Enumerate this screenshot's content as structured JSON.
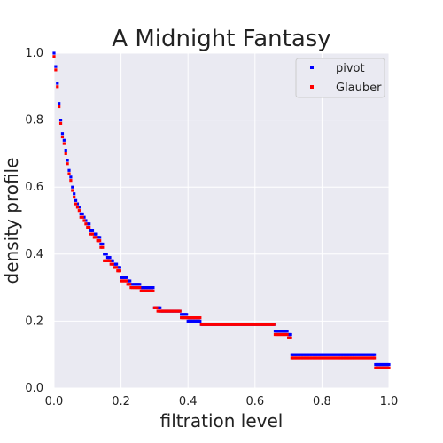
{
  "chart_data": {
    "type": "scatter",
    "title": "A Midnight Fantasy",
    "xlabel": "filtration level",
    "ylabel": "density profile",
    "xlim": [
      0,
      1
    ],
    "ylim": [
      0,
      1
    ],
    "xticks": [
      "0.0",
      "0.2",
      "0.4",
      "0.6",
      "0.8",
      "1.0"
    ],
    "yticks": [
      "0.0",
      "0.2",
      "0.4",
      "0.6",
      "0.8",
      "1.0"
    ],
    "grid": true,
    "legend_position": "top-right",
    "background_color": "#eaeaf2",
    "series": [
      {
        "name": "pivot",
        "color": "#0000ff",
        "x": [
          0.0,
          0.005,
          0.01,
          0.015,
          0.02,
          0.025,
          0.03,
          0.035,
          0.04,
          0.045,
          0.05,
          0.055,
          0.06,
          0.065,
          0.07,
          0.075,
          0.08,
          0.085,
          0.09,
          0.095,
          0.1,
          0.11,
          0.12,
          0.13,
          0.14,
          0.15,
          0.16,
          0.17,
          0.18,
          0.19,
          0.2,
          0.22,
          0.23,
          0.24,
          0.26,
          0.28,
          0.3,
          0.31,
          0.32,
          0.34,
          0.36,
          0.38,
          0.4,
          0.42,
          0.44,
          0.46,
          0.5,
          0.55,
          0.6,
          0.65,
          0.66,
          0.68,
          0.7,
          0.71,
          0.72,
          0.75,
          0.8,
          0.85,
          0.9,
          0.95,
          0.96,
          0.98,
          1.0
        ],
        "y": [
          1.0,
          0.96,
          0.91,
          0.85,
          0.8,
          0.76,
          0.74,
          0.71,
          0.68,
          0.65,
          0.63,
          0.6,
          0.58,
          0.56,
          0.55,
          0.54,
          0.52,
          0.52,
          0.51,
          0.5,
          0.49,
          0.47,
          0.46,
          0.45,
          0.43,
          0.4,
          0.39,
          0.38,
          0.37,
          0.36,
          0.33,
          0.32,
          0.31,
          0.31,
          0.3,
          0.3,
          0.24,
          0.24,
          0.23,
          0.23,
          0.23,
          0.22,
          0.2,
          0.2,
          0.19,
          0.19,
          0.19,
          0.19,
          0.19,
          0.19,
          0.17,
          0.17,
          0.16,
          0.1,
          0.1,
          0.1,
          0.1,
          0.1,
          0.1,
          0.1,
          0.07,
          0.07,
          0.07
        ]
      },
      {
        "name": "Glauber",
        "color": "#ff0000",
        "x": [
          0.0,
          0.005,
          0.01,
          0.015,
          0.02,
          0.025,
          0.03,
          0.035,
          0.04,
          0.045,
          0.05,
          0.055,
          0.06,
          0.065,
          0.07,
          0.075,
          0.08,
          0.085,
          0.09,
          0.095,
          0.1,
          0.11,
          0.12,
          0.13,
          0.14,
          0.15,
          0.16,
          0.17,
          0.18,
          0.19,
          0.2,
          0.22,
          0.23,
          0.24,
          0.26,
          0.28,
          0.3,
          0.31,
          0.32,
          0.34,
          0.36,
          0.38,
          0.4,
          0.42,
          0.44,
          0.46,
          0.5,
          0.55,
          0.6,
          0.65,
          0.66,
          0.68,
          0.7,
          0.71,
          0.72,
          0.75,
          0.8,
          0.85,
          0.9,
          0.95,
          0.96,
          0.98,
          1.0
        ],
        "y": [
          0.99,
          0.95,
          0.9,
          0.84,
          0.79,
          0.75,
          0.73,
          0.7,
          0.67,
          0.64,
          0.62,
          0.59,
          0.57,
          0.55,
          0.54,
          0.53,
          0.51,
          0.51,
          0.5,
          0.49,
          0.48,
          0.46,
          0.45,
          0.44,
          0.42,
          0.38,
          0.38,
          0.37,
          0.36,
          0.35,
          0.32,
          0.31,
          0.3,
          0.3,
          0.29,
          0.29,
          0.24,
          0.23,
          0.23,
          0.23,
          0.23,
          0.21,
          0.21,
          0.21,
          0.19,
          0.19,
          0.19,
          0.19,
          0.19,
          0.19,
          0.16,
          0.16,
          0.15,
          0.09,
          0.09,
          0.09,
          0.09,
          0.09,
          0.09,
          0.09,
          0.06,
          0.06,
          0.06
        ]
      }
    ]
  }
}
